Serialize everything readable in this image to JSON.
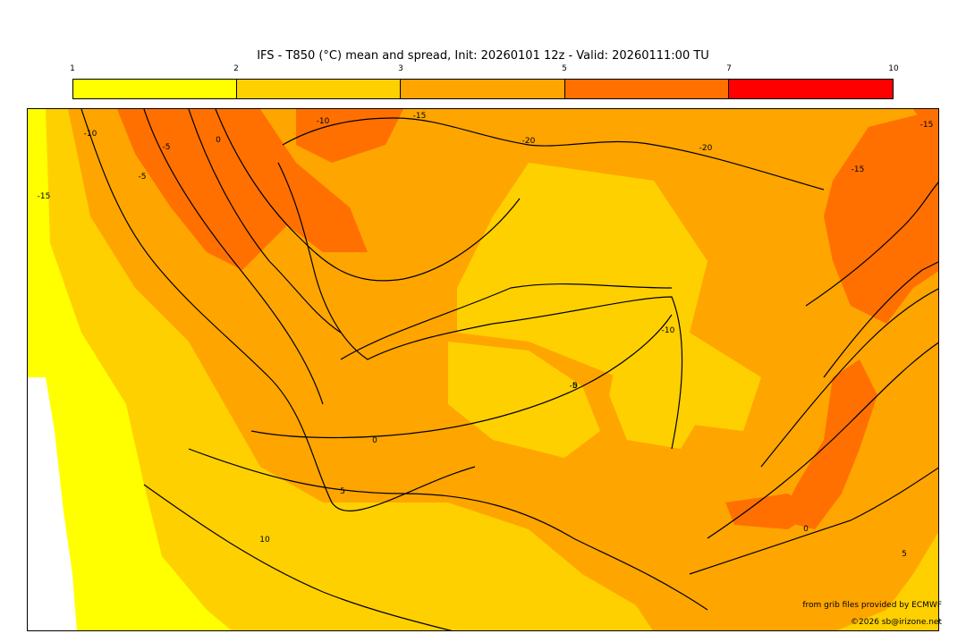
{
  "title": "IFS - T850 (°C) mean and spread, Init: 20260101 12z - Valid: 20260111:00 TU",
  "colorbar": {
    "ticks": [
      "1",
      "2",
      "3",
      "5",
      "7",
      "10"
    ],
    "colors": [
      "#ffff00",
      "#ffd000",
      "#ffa500",
      "#ff7000",
      "#ff0000"
    ]
  },
  "map": {
    "colors": {
      "spread_1_2": "#ffff00",
      "spread_2_3": "#ffd000",
      "spread_3_5": "#ffa500",
      "spread_5_7": "#ff7000",
      "sea": "#ffffff",
      "contour": "#000000"
    },
    "contour_labels": [
      "-10",
      "-5",
      "0",
      "-5",
      "-10",
      "-15",
      "-20",
      "-20",
      "-15",
      "-15",
      "-10",
      "0",
      "-5",
      "0",
      "5",
      "10",
      "5",
      "0",
      "-15"
    ]
  },
  "credits": {
    "source": "from grib files provided by ECMWF",
    "copyright": "©2026 sb@irizone.net"
  }
}
